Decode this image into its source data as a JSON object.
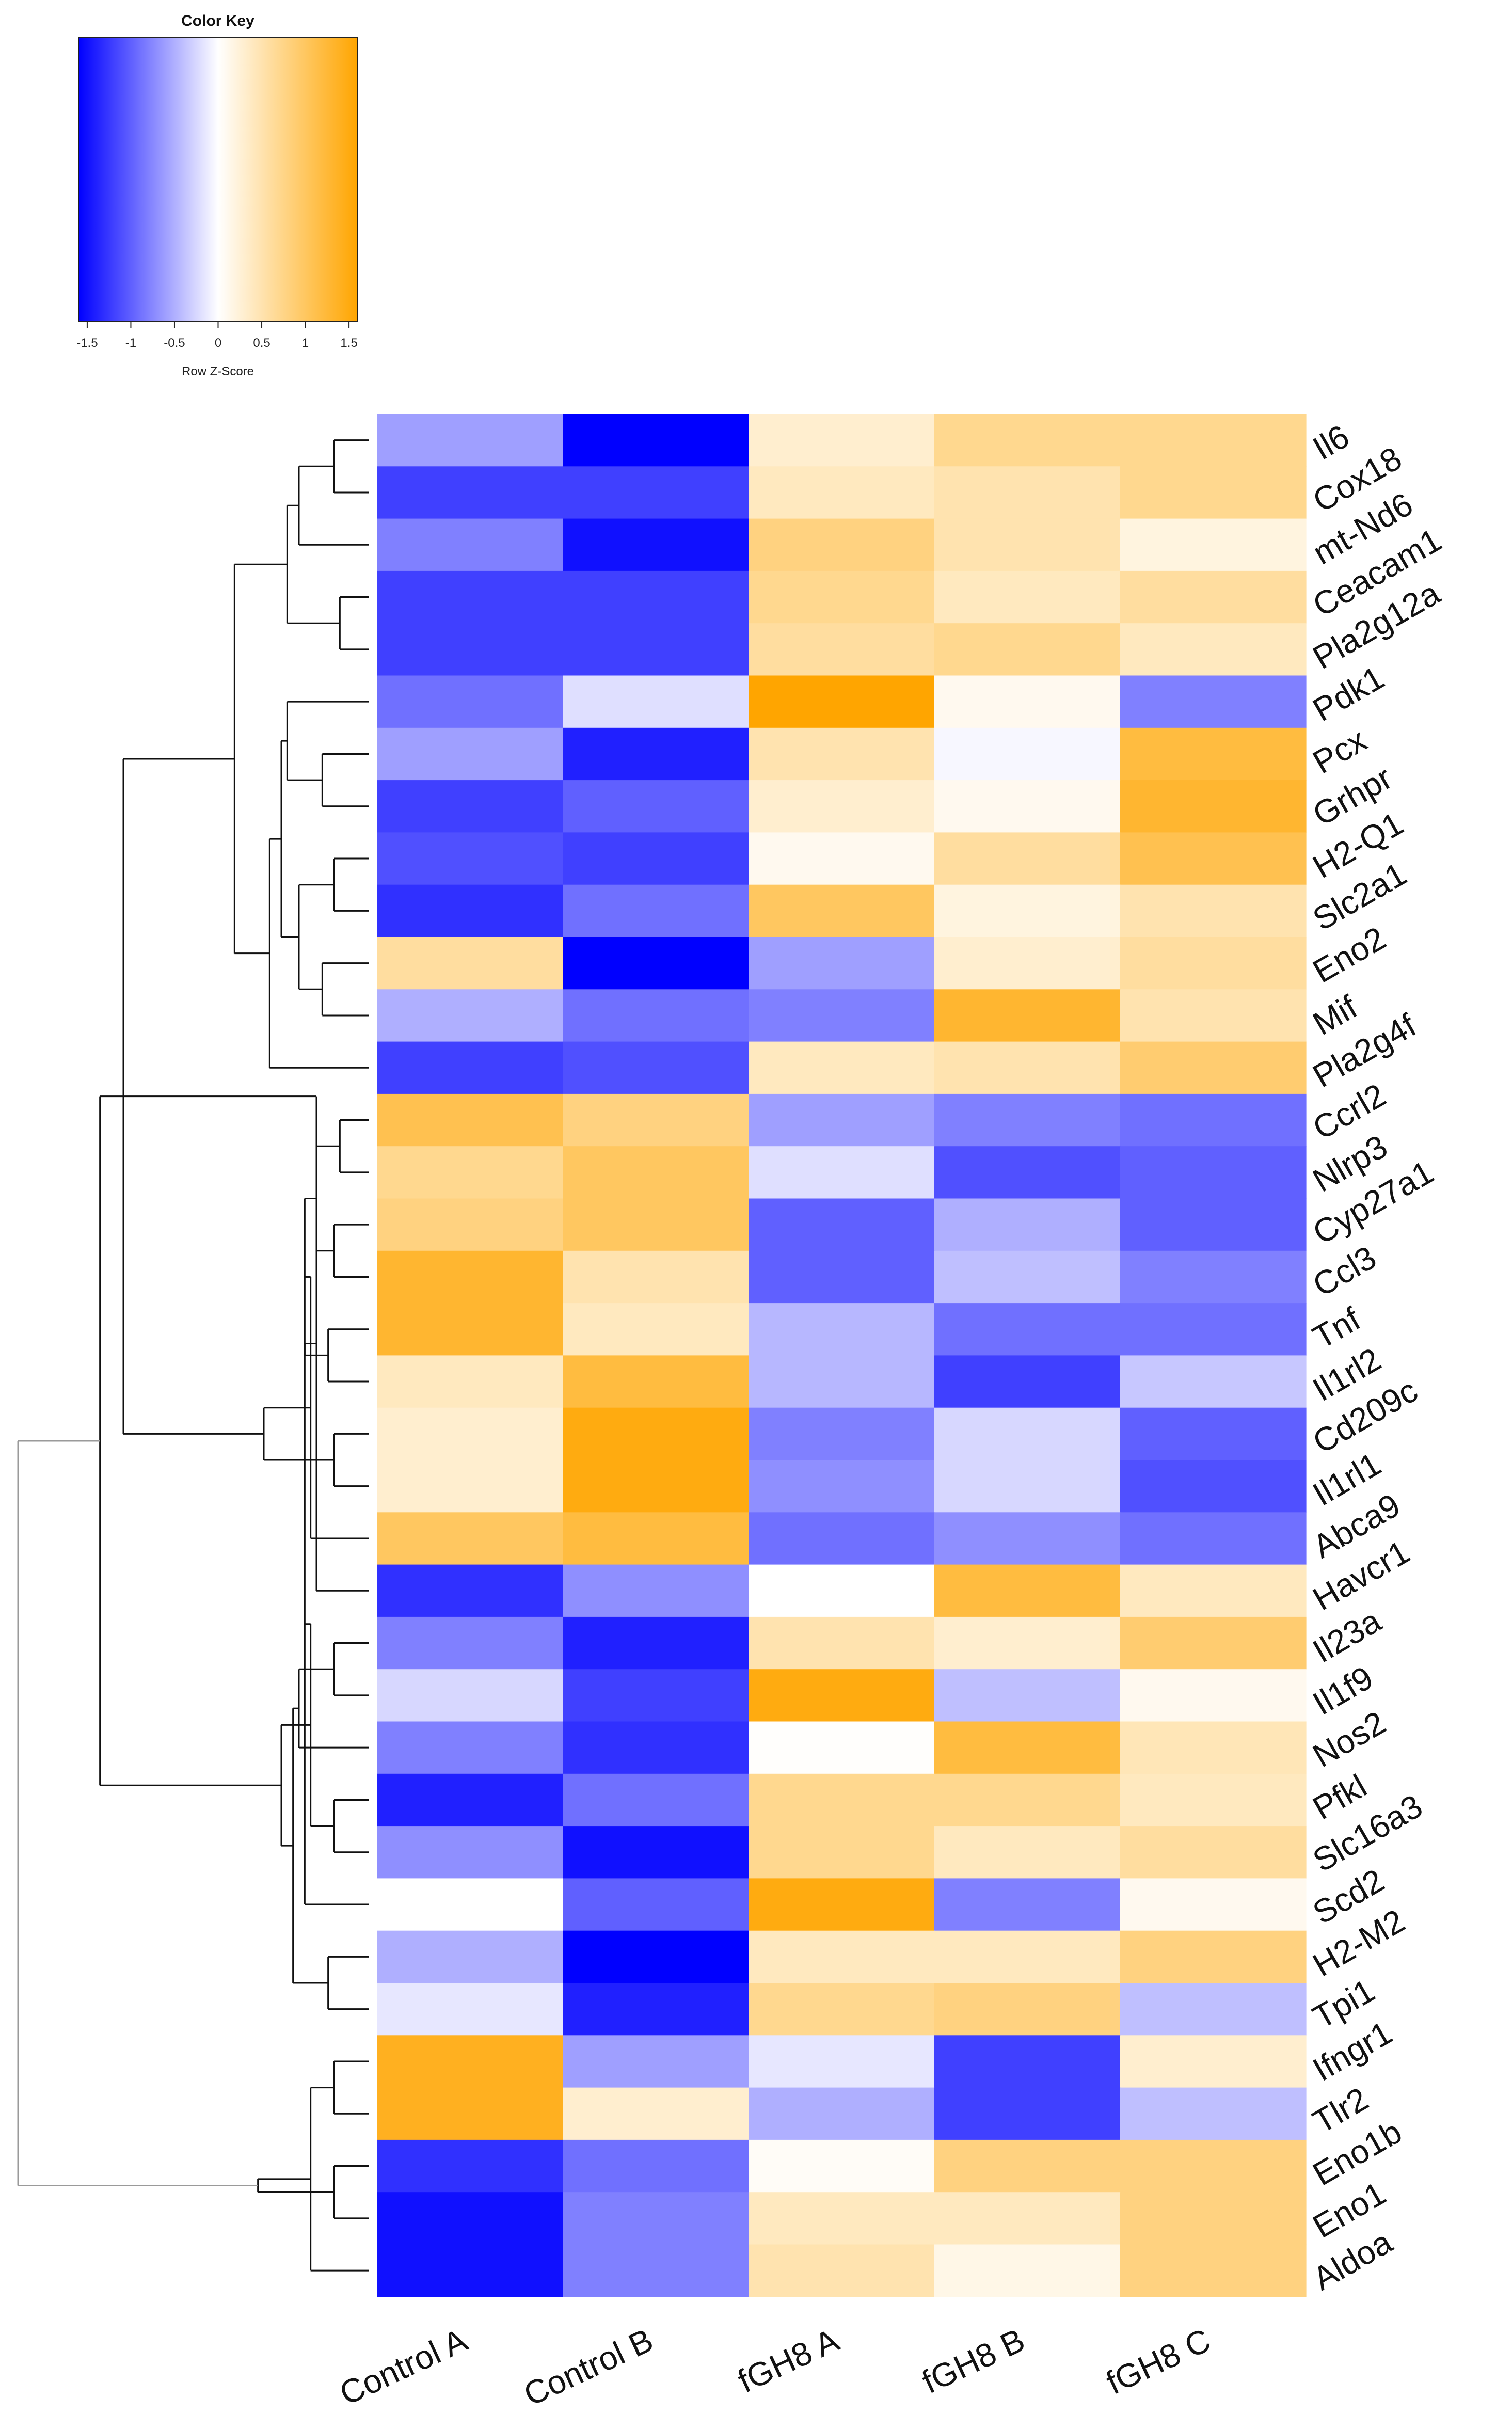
{
  "chart_data": {
    "type": "heatmap",
    "color_key": {
      "title": "Color Key",
      "xlabel": "Row Z-Score",
      "range": [
        -1.6,
        1.6
      ],
      "ticks": [
        -1.5,
        -1,
        -0.5,
        0,
        0.5,
        1,
        1.5
      ],
      "tick_labels": [
        "-1.5",
        "-1",
        "-0.5",
        "0",
        "0.5",
        "1",
        "1.5"
      ],
      "low_color": "#0000ff",
      "mid_color": "#ffffff",
      "high_color": "#ffa500"
    },
    "columns": [
      "Control A",
      "Control B",
      "fGH8 A",
      "fGH8 B",
      "fGH8 C"
    ],
    "rows": [
      {
        "gene": "Il6",
        "values": [
          -0.6,
          -1.6,
          0.3,
          0.7,
          0.7
        ]
      },
      {
        "gene": "Cox18",
        "values": [
          -1.2,
          -1.2,
          0.4,
          0.5,
          0.7
        ]
      },
      {
        "gene": "mt-Nd6",
        "values": [
          -0.8,
          -1.5,
          0.8,
          0.5,
          0.2
        ]
      },
      {
        "gene": "Ceacam1",
        "values": [
          -1.2,
          -1.2,
          0.7,
          0.4,
          0.6
        ]
      },
      {
        "gene": "Pla2g12a",
        "values": [
          -1.2,
          -1.2,
          0.6,
          0.7,
          0.4
        ]
      },
      {
        "gene": "Pdk1",
        "values": [
          -0.9,
          -0.2,
          1.6,
          0.1,
          -0.8
        ]
      },
      {
        "gene": "Pcx",
        "values": [
          -0.6,
          -1.4,
          0.5,
          -0.05,
          1.2
        ]
      },
      {
        "gene": "Grhpr",
        "values": [
          -1.2,
          -1.0,
          0.3,
          0.1,
          1.3
        ]
      },
      {
        "gene": "H2-Q1",
        "values": [
          -1.1,
          -1.2,
          0.1,
          0.6,
          1.1
        ]
      },
      {
        "gene": "Slc2a1",
        "values": [
          -1.3,
          -0.9,
          1.0,
          0.2,
          0.5
        ]
      },
      {
        "gene": "Eno2",
        "values": [
          0.6,
          -1.6,
          -0.6,
          0.3,
          0.6
        ]
      },
      {
        "gene": "Mif",
        "values": [
          -0.5,
          -0.9,
          -0.8,
          1.3,
          0.5
        ]
      },
      {
        "gene": "Pla2g4f",
        "values": [
          -1.2,
          -1.1,
          0.4,
          0.5,
          0.9
        ]
      },
      {
        "gene": "Ccrl2",
        "values": [
          1.1,
          0.8,
          -0.6,
          -0.8,
          -0.9
        ]
      },
      {
        "gene": "Nlrp3",
        "values": [
          0.7,
          1.0,
          -0.2,
          -1.1,
          -1.0
        ]
      },
      {
        "gene": "Cyp27a1",
        "values": [
          0.8,
          1.0,
          -1.0,
          -0.5,
          -1.0
        ]
      },
      {
        "gene": "Ccl3",
        "values": [
          1.3,
          0.5,
          -1.0,
          -0.4,
          -0.8
        ]
      },
      {
        "gene": "Tnf",
        "values": [
          1.3,
          0.4,
          -0.45,
          -0.9,
          -0.9
        ]
      },
      {
        "gene": "Il1rl2",
        "values": [
          0.4,
          1.2,
          -0.45,
          -1.2,
          -0.35
        ]
      },
      {
        "gene": "Cd209c",
        "values": [
          0.3,
          1.5,
          -0.8,
          -0.25,
          -1.0
        ]
      },
      {
        "gene": "Il1rl1",
        "values": [
          0.3,
          1.5,
          -0.7,
          -0.25,
          -1.1
        ]
      },
      {
        "gene": "Abca9",
        "values": [
          1.0,
          1.2,
          -0.9,
          -0.7,
          -0.9
        ]
      },
      {
        "gene": "Havcr1",
        "values": [
          -1.3,
          -0.7,
          0.0,
          1.2,
          0.4
        ]
      },
      {
        "gene": "Il23a",
        "values": [
          -0.8,
          -1.4,
          0.5,
          0.3,
          0.9
        ]
      },
      {
        "gene": "Il1f9",
        "values": [
          -0.25,
          -1.2,
          1.5,
          -0.4,
          0.1
        ]
      },
      {
        "gene": "Nos2",
        "values": [
          -0.8,
          -1.3,
          0.02,
          1.2,
          0.45
        ]
      },
      {
        "gene": "Pfkl",
        "values": [
          -1.4,
          -0.9,
          0.7,
          0.7,
          0.4
        ]
      },
      {
        "gene": "Slc16a3",
        "values": [
          -0.7,
          -1.5,
          0.7,
          0.4,
          0.6
        ]
      },
      {
        "gene": "Scd2",
        "values": [
          0.0,
          -1.0,
          1.5,
          -0.8,
          0.1
        ]
      },
      {
        "gene": "H2-M2",
        "values": [
          -0.5,
          -1.6,
          0.4,
          0.4,
          0.8
        ]
      },
      {
        "gene": "Tpi1",
        "values": [
          -0.15,
          -1.4,
          0.7,
          0.8,
          -0.4
        ]
      },
      {
        "gene": "Ifngr1",
        "values": [
          1.4,
          -0.6,
          -0.15,
          -1.2,
          0.3
        ]
      },
      {
        "gene": "Tlr2",
        "values": [
          1.4,
          0.3,
          -0.5,
          -1.2,
          -0.4
        ]
      },
      {
        "gene": "Eno1b",
        "values": [
          -1.3,
          -0.9,
          0.05,
          0.8,
          0.8
        ]
      },
      {
        "gene": "Eno1",
        "values": [
          -1.5,
          -0.8,
          0.4,
          0.4,
          0.8
        ]
      },
      {
        "gene": "Aldoa",
        "values": [
          -1.5,
          -0.8,
          0.5,
          0.15,
          0.8
        ]
      }
    ],
    "dendrogram": [
      [
        0,
        1,
        0.3
      ],
      [
        36,
        2,
        0.6
      ],
      [
        3,
        4,
        0.25
      ],
      [
        37,
        38,
        0.7
      ],
      [
        6,
        7,
        0.4
      ],
      [
        40,
        5,
        0.7
      ],
      [
        8,
        9,
        0.3
      ],
      [
        10,
        11,
        0.4
      ],
      [
        42,
        43,
        0.6
      ],
      [
        41,
        44,
        0.75
      ],
      [
        45,
        12,
        0.85
      ],
      [
        39,
        46,
        1.15
      ],
      [
        13,
        14,
        0.25
      ],
      [
        15,
        16,
        0.3
      ],
      [
        48,
        49,
        0.45
      ],
      [
        17,
        18,
        0.35
      ],
      [
        50,
        51,
        0.55
      ],
      [
        19,
        20,
        0.3
      ],
      [
        52,
        21,
        0.5
      ],
      [
        53,
        54,
        0.9
      ],
      [
        47,
        55,
        2.1
      ],
      [
        23,
        24,
        0.3
      ],
      [
        22,
        56,
        0.45
      ],
      [
        57,
        25,
        0.6
      ],
      [
        26,
        27,
        0.3
      ],
      [
        58,
        28,
        0.55
      ],
      [
        29,
        30,
        0.35
      ],
      [
        31,
        32,
        0.3
      ],
      [
        60,
        61,
        0.5
      ],
      [
        59,
        62,
        0.65
      ],
      [
        33,
        34,
        0.3
      ],
      [
        63,
        35,
        0.5
      ],
      [
        64,
        65,
        0.75
      ],
      [
        66,
        67,
        0.95
      ],
      [
        56,
        68,
        2.3
      ],
      [
        69,
        70,
        3.0
      ]
    ]
  }
}
